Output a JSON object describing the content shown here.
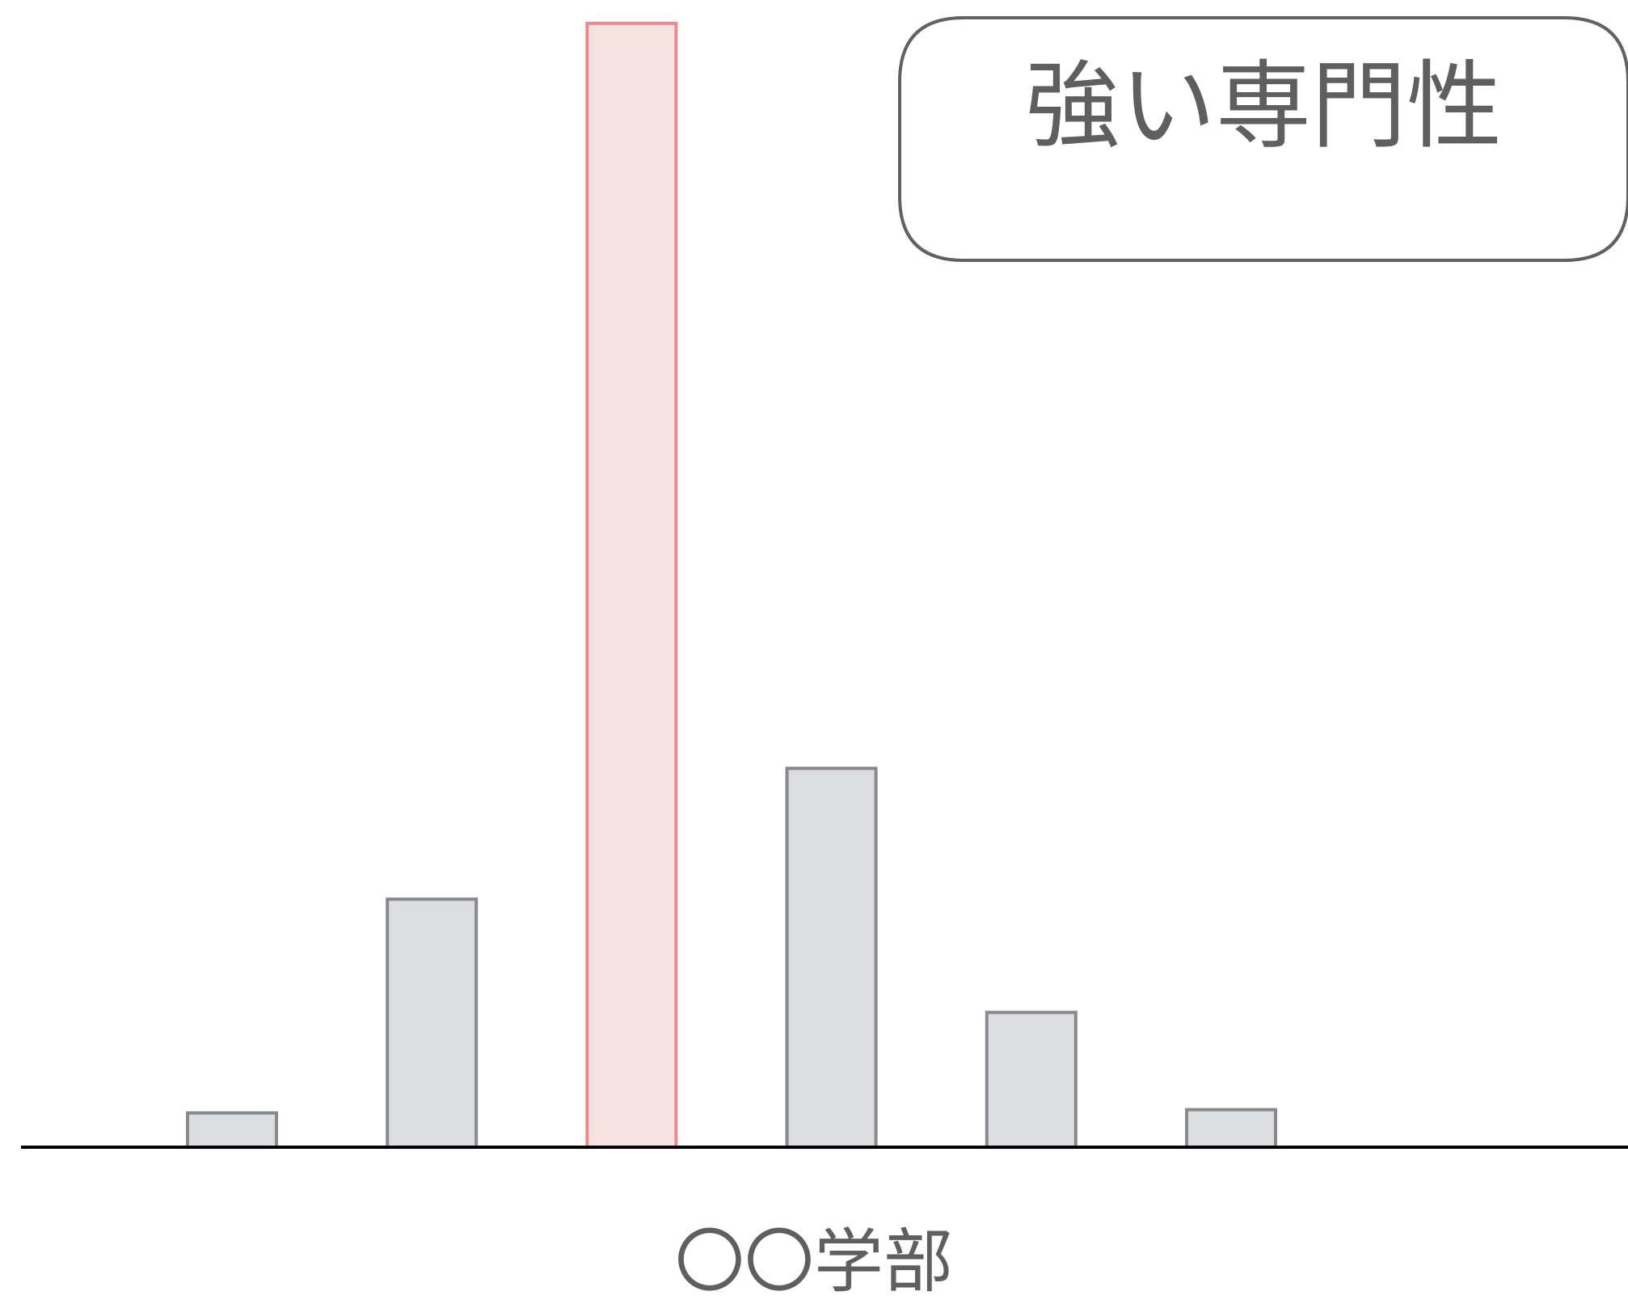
{
  "chart_data": {
    "type": "bar",
    "categories": [
      "",
      "",
      "",
      "",
      "",
      ""
    ],
    "values": [
      0.43,
      3.11,
      14.09,
      4.75,
      1.69,
      0.47
    ],
    "highlight_index": 2,
    "ylim": [
      0,
      14.2
    ],
    "grid": false,
    "xlabel": "〇〇学部",
    "annotation": "強い専門性"
  },
  "colors": {
    "bar_fill": "#dcdde0",
    "bar_stroke": "#87898c",
    "highlight_fill": "#f7e3e3",
    "highlight_stroke": "#f08a8a",
    "axis": "#000000",
    "text": "#5f5f5f",
    "callout_stroke": "#616161"
  }
}
